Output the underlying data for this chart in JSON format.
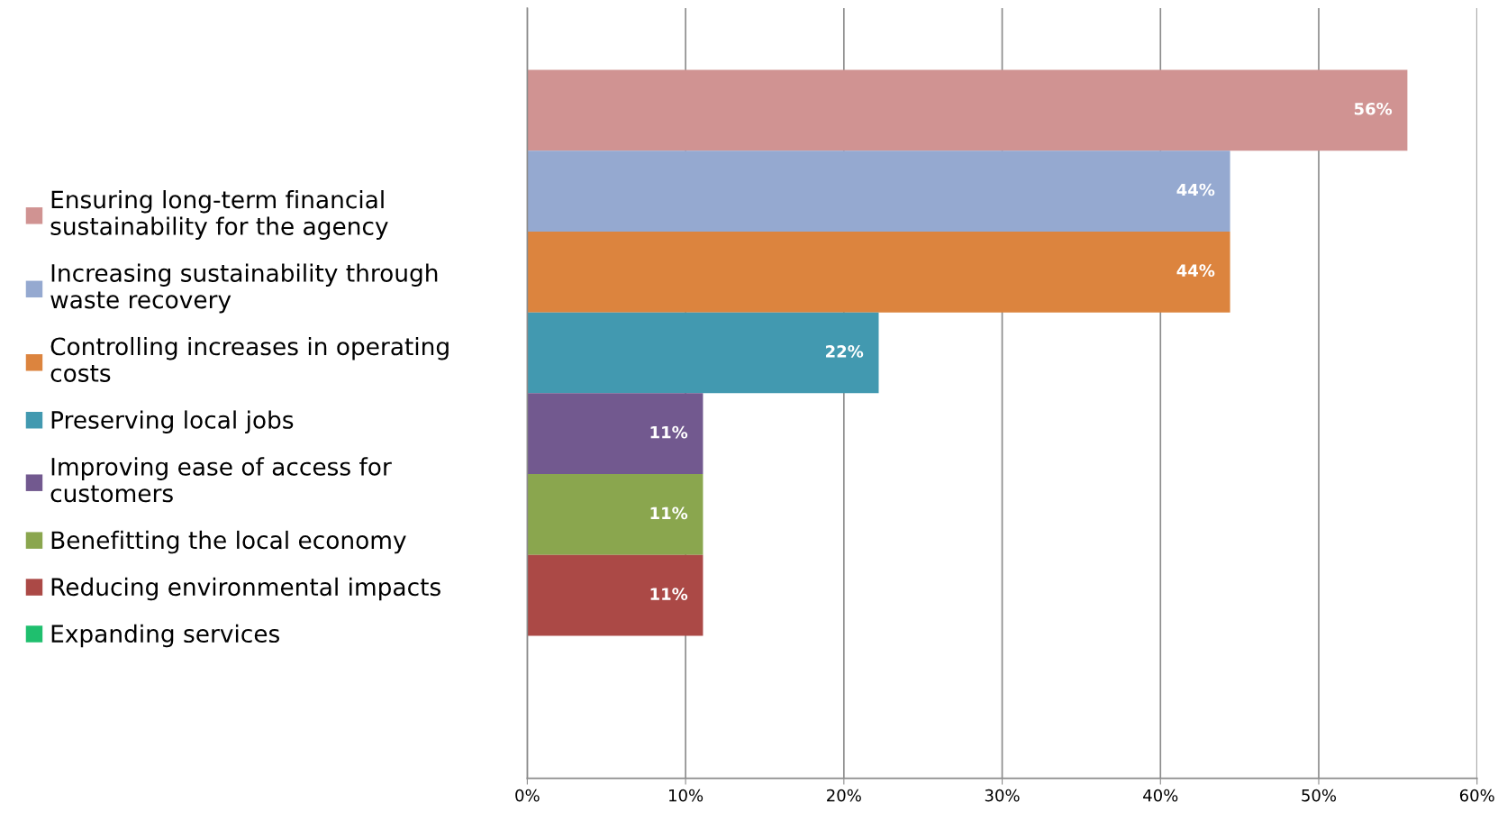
{
  "chart_data": {
    "type": "bar",
    "orientation": "horizontal",
    "categories": [
      null
    ],
    "series": [
      {
        "name": "Ensuring long-term financial sustainability for the agency",
        "color": "#d09392",
        "values": [
          55.6
        ],
        "value_labels": [
          "56%"
        ]
      },
      {
        "name": "Increasing sustainability through waste recovery",
        "color": "#95a9d0",
        "values": [
          44.4
        ],
        "value_labels": [
          "44%"
        ]
      },
      {
        "name": "Controlling increases in operating costs",
        "color": "#dc843e",
        "values": [
          44.4
        ],
        "value_labels": [
          "44%"
        ]
      },
      {
        "name": "Preserving local jobs",
        "color": "#4299b0",
        "values": [
          22.2
        ],
        "value_labels": [
          "22%"
        ]
      },
      {
        "name": "Improving ease of access for customers",
        "color": "#72598f",
        "values": [
          11.1
        ],
        "value_labels": [
          "11%"
        ]
      },
      {
        "name": "Benefitting the local economy",
        "color": "#8aa64e",
        "values": [
          11.1
        ],
        "value_labels": [
          "11%"
        ]
      },
      {
        "name": "Reducing environmental impacts",
        "color": "#ab4946",
        "values": [
          11.1
        ],
        "value_labels": [
          "11%"
        ]
      },
      {
        "name": "Expanding services",
        "color": "#1fbf6e",
        "values": [
          0
        ],
        "value_labels": [
          null
        ]
      }
    ],
    "xlim": [
      0,
      60
    ],
    "xticks": [
      {
        "value": 0,
        "label": "0%"
      },
      {
        "value": 10,
        "label": "10%"
      },
      {
        "value": 20,
        "label": "20%"
      },
      {
        "value": 30,
        "label": "30%"
      },
      {
        "value": 40,
        "label": "40%"
      },
      {
        "value": 50,
        "label": "50%"
      },
      {
        "value": 60,
        "label": "60%"
      }
    ],
    "grid": "x",
    "legend": "left"
  }
}
